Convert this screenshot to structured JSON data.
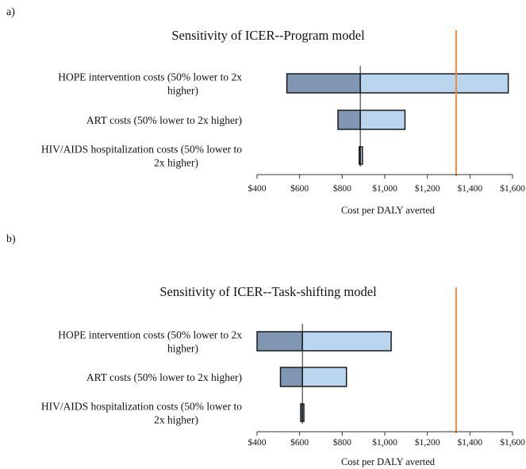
{
  "panels": [
    {
      "label": "a)"
    },
    {
      "label": "b)"
    }
  ],
  "colors": {
    "low": "#7f97b2",
    "high": "#b9d6ee",
    "outline": "#1a1a1a",
    "threshold": "#f08a3c",
    "axis": "#333333"
  },
  "chart_data": [
    {
      "type": "bar",
      "orientation": "horizontal-tornado",
      "title": "Sensitivity of ICER--Program model",
      "categories": [
        "HOPE intervention costs (50% lower to 2x higher)",
        "ART costs (50% lower to 2x higher)",
        "HIV/AIDS hospitalization costs (50% lower to 2x higher)"
      ],
      "base_value": 885,
      "series": [
        {
          "values": [
            540,
            780,
            880
          ]
        },
        {
          "values": [
            1580,
            1095,
            895
          ]
        }
      ],
      "threshold": 1335,
      "xlim": [
        400,
        1600
      ],
      "xticks": [
        "$400",
        "$600",
        "$800",
        "$1,000",
        "$1,200",
        "$1,400",
        "$1,600"
      ],
      "xtick_values": [
        400,
        600,
        800,
        1000,
        1200,
        1400,
        1600
      ],
      "xlabel": "Cost per DALY averted",
      "grid": false
    },
    {
      "type": "bar",
      "orientation": "horizontal-tornado",
      "title": "Sensitivity of ICER--Task-shifting model",
      "categories": [
        "HOPE intervention costs (50% lower to 2x higher)",
        "ART costs (50% lower to 2x higher)",
        "HIV/AIDS hospitalization costs (50% lower to 2x higher)"
      ],
      "base_value": 613,
      "series": [
        {
          "values": [
            400,
            510,
            605
          ]
        },
        {
          "values": [
            1030,
            820,
            620
          ]
        }
      ],
      "threshold": 1335,
      "xlim": [
        400,
        1600
      ],
      "xticks": [
        "$400",
        "$600",
        "$800",
        "$1,000",
        "$1,200",
        "$1,400",
        "$1,600"
      ],
      "xtick_values": [
        400,
        600,
        800,
        1000,
        1200,
        1400,
        1600
      ],
      "xlabel": "Cost per DALY averted",
      "grid": false
    }
  ]
}
